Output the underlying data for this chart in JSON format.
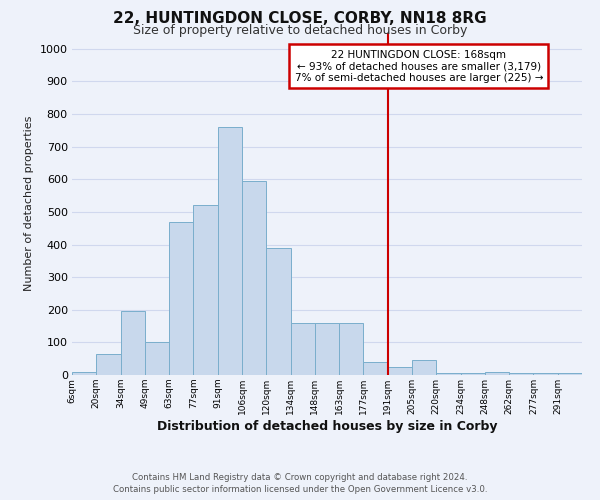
{
  "title": "22, HUNTINGDON CLOSE, CORBY, NN18 8RG",
  "subtitle": "Size of property relative to detached houses in Corby",
  "xlabel": "Distribution of detached houses by size in Corby",
  "ylabel": "Number of detached properties",
  "bar_color": "#c8d8ec",
  "bar_edge_color": "#7aaecc",
  "background_color": "#eef2fa",
  "grid_color": "#d0d8ee",
  "categories": [
    "6sqm",
    "20sqm",
    "34sqm",
    "49sqm",
    "63sqm",
    "77sqm",
    "91sqm",
    "106sqm",
    "120sqm",
    "134sqm",
    "148sqm",
    "163sqm",
    "177sqm",
    "191sqm",
    "205sqm",
    "220sqm",
    "234sqm",
    "248sqm",
    "262sqm",
    "277sqm",
    "291sqm"
  ],
  "values": [
    10,
    65,
    195,
    100,
    470,
    520,
    760,
    595,
    390,
    160,
    160,
    160,
    40,
    25,
    45,
    5,
    5,
    10,
    5,
    5,
    5
  ],
  "vline_index": 12,
  "vline_color": "#cc0000",
  "annotation_box_edgecolor": "#cc0000",
  "property_label": "22 HUNTINGDON CLOSE: 168sqm",
  "annotation_line1": "← 93% of detached houses are smaller (3,179)",
  "annotation_line2": "7% of semi-detached houses are larger (225) →",
  "ylim": [
    0,
    1050
  ],
  "yticks": [
    0,
    100,
    200,
    300,
    400,
    500,
    600,
    700,
    800,
    900,
    1000
  ],
  "footer_line1": "Contains HM Land Registry data © Crown copyright and database right 2024.",
  "footer_line2": "Contains public sector information licensed under the Open Government Licence v3.0."
}
